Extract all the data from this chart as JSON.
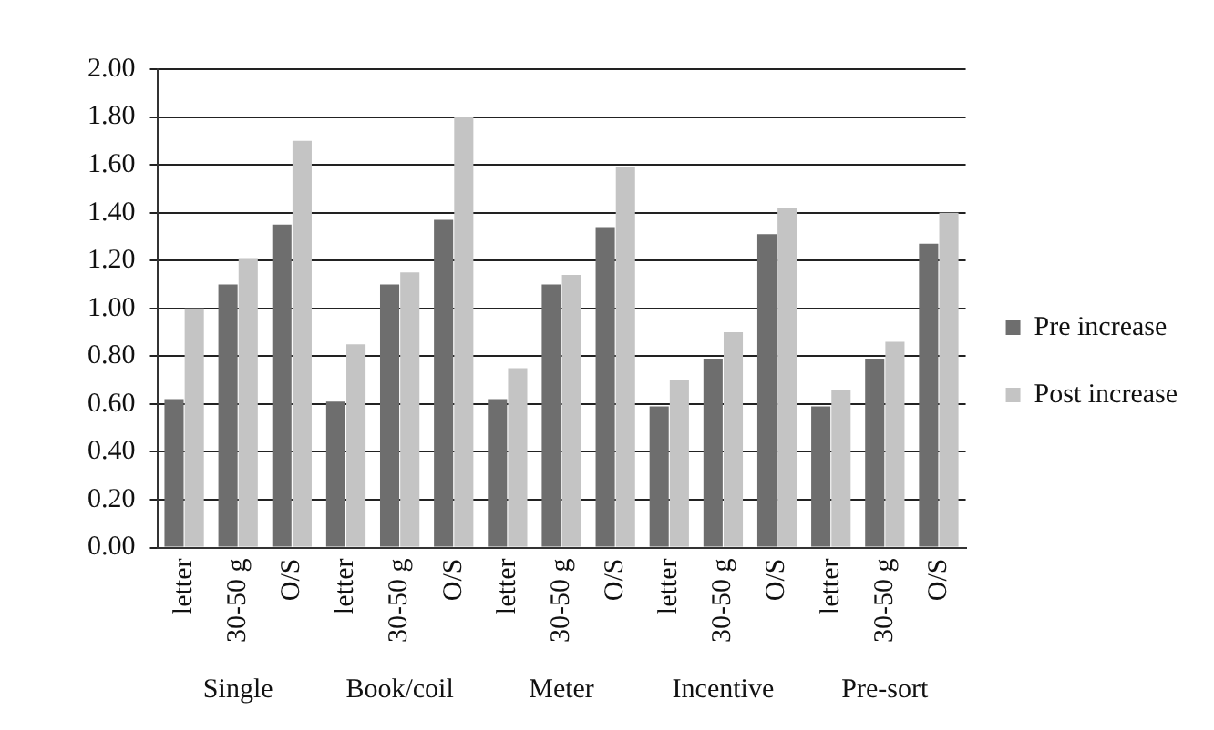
{
  "chart_data": {
    "type": "bar",
    "categories": [
      "letter",
      "30-50 g",
      "O/S",
      "letter",
      "30-50 g",
      "O/S",
      "letter",
      "30-50 g",
      "O/S",
      "letter",
      "30-50 g",
      "O/S",
      "letter",
      "30-50 g",
      "O/S"
    ],
    "series": [
      {
        "name": "Pre increase",
        "color": "#6e6e6e",
        "values": [
          0.62,
          1.1,
          1.35,
          0.61,
          1.1,
          1.37,
          0.62,
          1.1,
          1.34,
          0.59,
          0.79,
          1.31,
          0.59,
          0.79,
          1.27
        ]
      },
      {
        "name": "Post increase",
        "color": "#c4c4c4",
        "values": [
          1.0,
          1.21,
          1.7,
          0.85,
          1.15,
          1.8,
          0.75,
          1.14,
          1.59,
          0.7,
          0.9,
          1.42,
          0.66,
          0.86,
          1.4
        ]
      }
    ],
    "annotations": [
      "Single",
      "Book/coil",
      "Meter",
      "Incentive",
      "Pre-sort"
    ],
    "ylim": [
      0,
      2
    ],
    "yticks": [
      {
        "value": 0,
        "label": "0.00"
      },
      {
        "value": 0.2,
        "label": "0.20"
      },
      {
        "value": 0.4,
        "label": "0.40"
      },
      {
        "value": 0.6,
        "label": "0.60"
      },
      {
        "value": 0.8,
        "label": "0.80"
      },
      {
        "value": 1,
        "label": "1.00"
      },
      {
        "value": 1.2,
        "label": "1.20"
      },
      {
        "value": 1.4,
        "label": "1.40"
      },
      {
        "value": 1.6,
        "label": "1.60"
      },
      {
        "value": 1.8,
        "label": "1.80"
      },
      {
        "value": 2,
        "label": "2.00"
      }
    ],
    "grid": "y",
    "legend": "right"
  }
}
